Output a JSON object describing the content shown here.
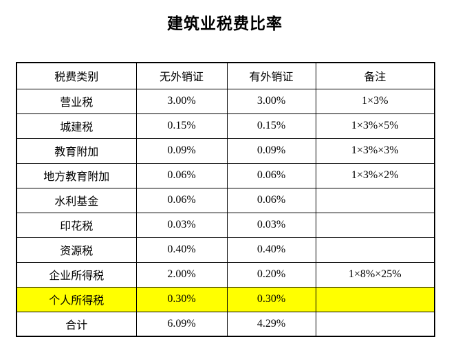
{
  "page": {
    "title": "建筑业税费比率"
  },
  "table": {
    "highlight_color": "#FFFF00",
    "headers": [
      "税费类别",
      "无外销证",
      "有外销证",
      "备注"
    ],
    "rows": [
      {
        "category": "营业税",
        "no_cert": "3.00%",
        "with_cert": "3.00%",
        "note": "1×3%",
        "highlight": false
      },
      {
        "category": "城建税",
        "no_cert": "0.15%",
        "with_cert": "0.15%",
        "note": "1×3%×5%",
        "highlight": false
      },
      {
        "category": "教育附加",
        "no_cert": "0.09%",
        "with_cert": "0.09%",
        "note": "1×3%×3%",
        "highlight": false
      },
      {
        "category": "地方教育附加",
        "no_cert": "0.06%",
        "with_cert": "0.06%",
        "note": "1×3%×2%",
        "highlight": false
      },
      {
        "category": "水利基金",
        "no_cert": "0.06%",
        "with_cert": "0.06%",
        "note": "",
        "highlight": false
      },
      {
        "category": "印花税",
        "no_cert": "0.03%",
        "with_cert": "0.03%",
        "note": "",
        "highlight": false
      },
      {
        "category": "资源税",
        "no_cert": "0.40%",
        "with_cert": "0.40%",
        "note": "",
        "highlight": false
      },
      {
        "category": "企业所得税",
        "no_cert": "2.00%",
        "with_cert": "0.20%",
        "note": "1×8%×25%",
        "highlight": false
      },
      {
        "category": "个人所得税",
        "no_cert": "0.30%",
        "with_cert": "0.30%",
        "note": "",
        "highlight": true
      },
      {
        "category": "合计",
        "no_cert": "6.09%",
        "with_cert": "4.29%",
        "note": "",
        "highlight": false
      }
    ]
  }
}
